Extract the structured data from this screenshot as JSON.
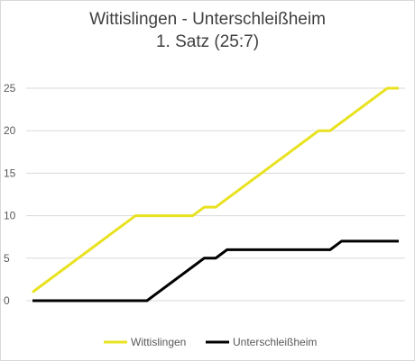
{
  "chart_data": {
    "type": "line",
    "title": "Wittislingen - Unterschleißheim",
    "subtitle": "1. Satz (25:7)",
    "xlabel": "",
    "ylabel": "",
    "ylim": [
      0,
      25
    ],
    "yticks": [
      0,
      5,
      10,
      15,
      20,
      25
    ],
    "grid": true,
    "legend_position": "bottom",
    "x": [
      1,
      2,
      3,
      4,
      5,
      6,
      7,
      8,
      9,
      10,
      11,
      12,
      13,
      14,
      15,
      16,
      17,
      18,
      19,
      20,
      21,
      22,
      23,
      24,
      25,
      26,
      27,
      28,
      29,
      30,
      31,
      32,
      33
    ],
    "series": [
      {
        "name": "Wittislingen",
        "color": "#e8e220",
        "values": [
          1,
          2,
          3,
          4,
          5,
          6,
          7,
          8,
          9,
          10,
          10,
          10,
          10,
          10,
          10,
          11,
          11,
          12,
          13,
          14,
          15,
          16,
          17,
          18,
          19,
          20,
          20,
          21,
          22,
          23,
          24,
          25,
          25
        ]
      },
      {
        "name": "Unterschleißheim",
        "color": "#000000",
        "values": [
          0,
          0,
          0,
          0,
          0,
          0,
          0,
          0,
          0,
          0,
          0,
          1,
          2,
          3,
          4,
          5,
          5,
          6,
          6,
          6,
          6,
          6,
          6,
          6,
          6,
          6,
          6,
          7,
          7,
          7,
          7,
          7,
          7
        ]
      }
    ]
  }
}
